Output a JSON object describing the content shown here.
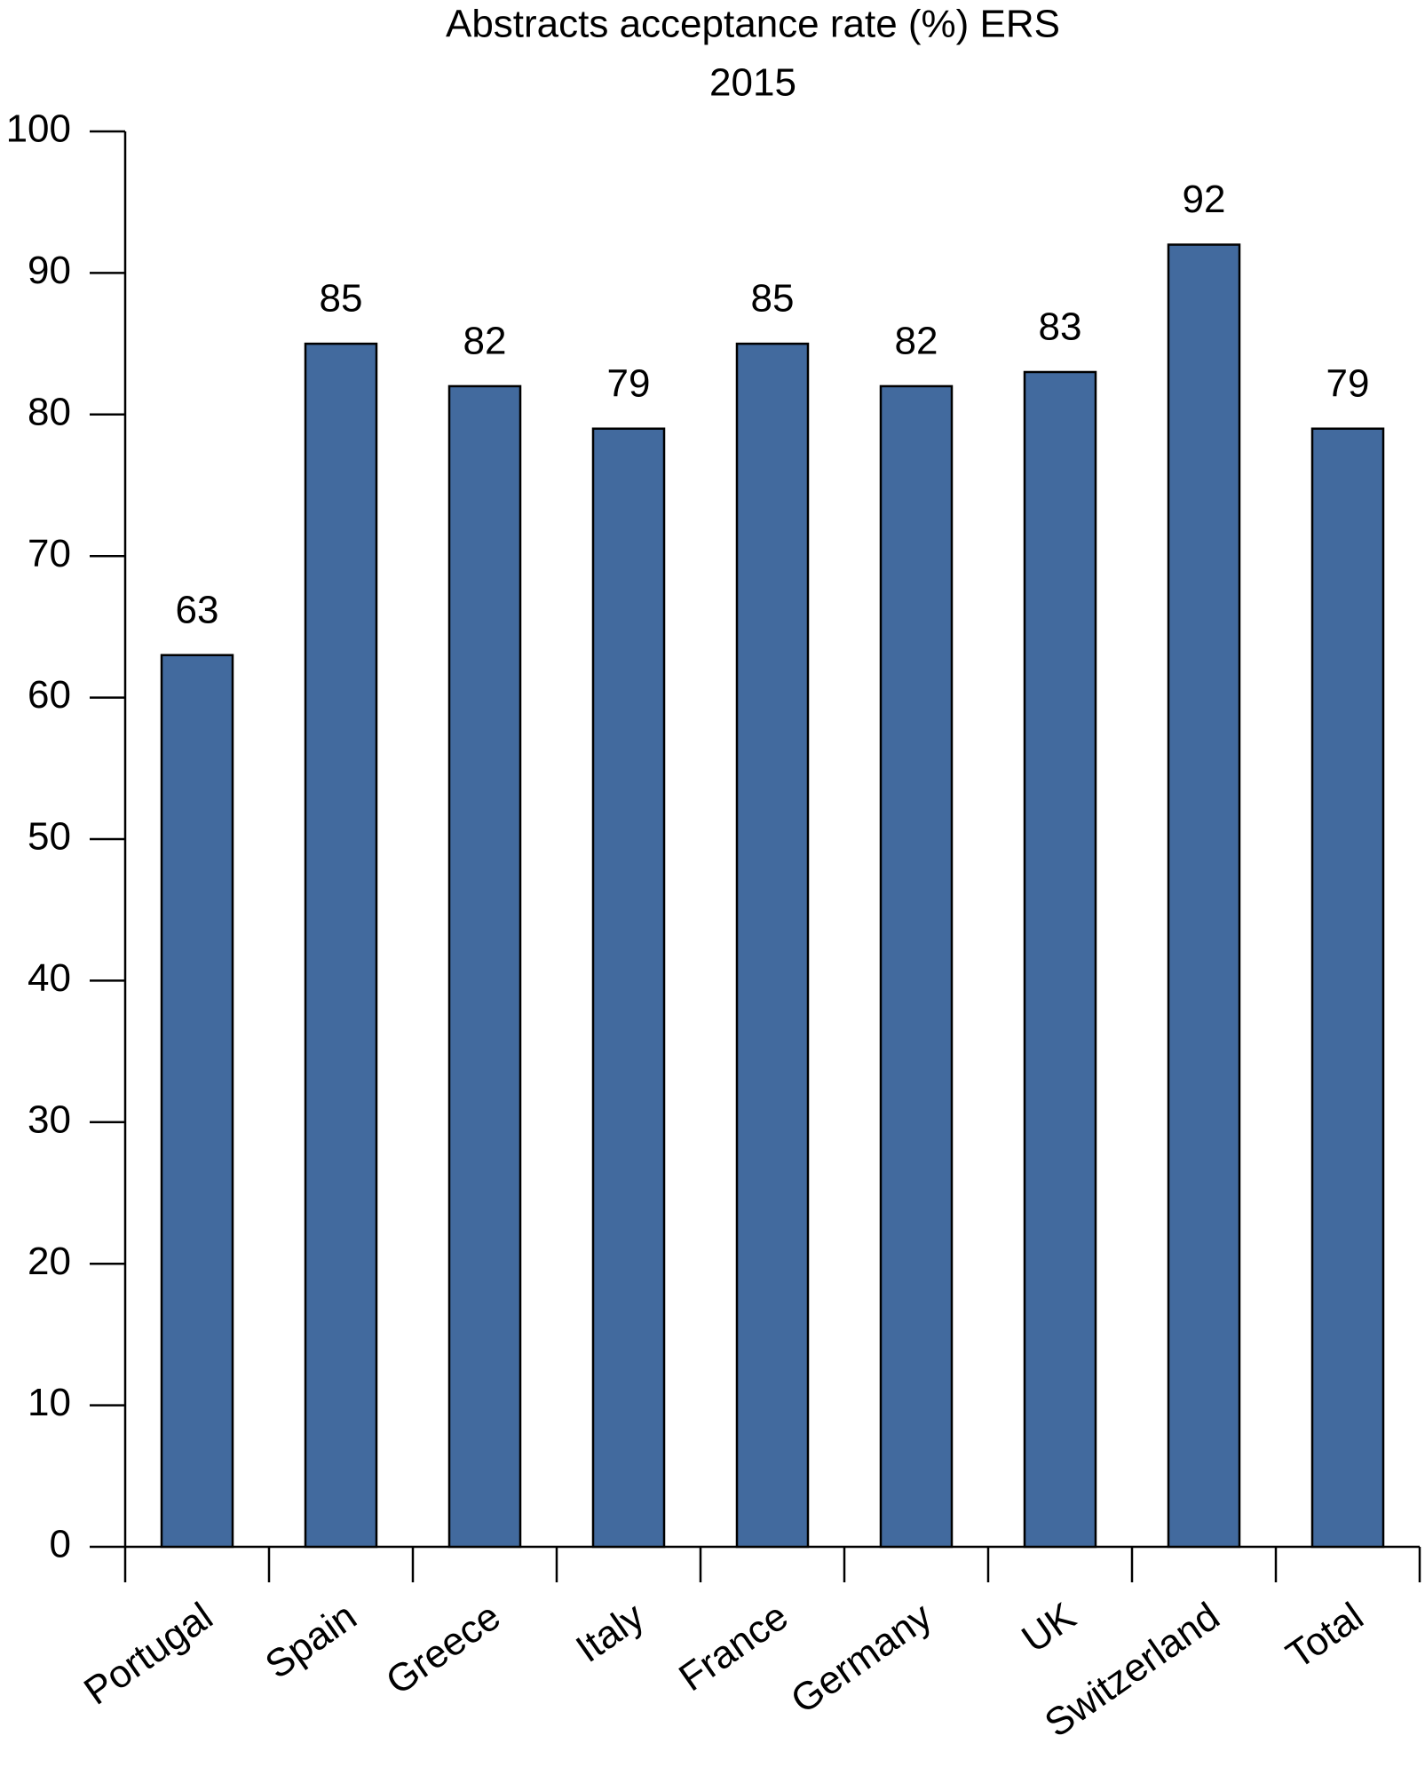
{
  "chart_data": {
    "type": "bar",
    "title": "Abstracts acceptance rate (%) ERS",
    "subtitle": "2015",
    "categories": [
      "Portugal",
      "Spain",
      "Greece",
      "Italy",
      "France",
      "Germany",
      "UK",
      "Switzerland",
      "Total"
    ],
    "values": [
      63,
      85,
      82,
      79,
      85,
      82,
      83,
      92,
      79
    ],
    "color": "#426a9e",
    "ylim": [
      0,
      100
    ],
    "yticks": [
      0,
      10,
      20,
      30,
      40,
      50,
      60,
      70,
      80,
      90,
      100
    ]
  }
}
